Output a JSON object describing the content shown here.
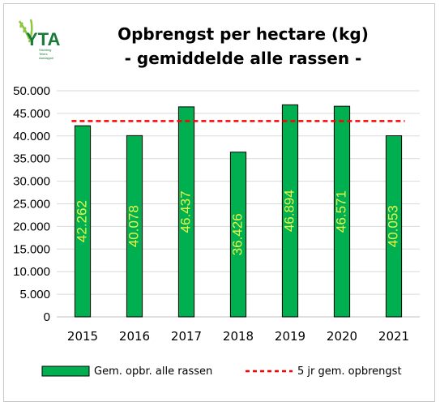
{
  "header": {
    "logo_letters": "YTA",
    "logo_subtext": [
      "Stichting",
      "Telers",
      "Aardappel"
    ],
    "title_line1": "Opbrengst per hectare (kg)",
    "title_line2": "- gemiddelde alle rassen -"
  },
  "colors": {
    "bar_fill": "#00b050",
    "bar_stroke": "#000000",
    "data_label": "#e8f548",
    "avg_line": "#ff0000",
    "logo_green": "#8dc63f",
    "logo_dark": "#1a7a3a",
    "grid": "#d9d9d9"
  },
  "chart_data": {
    "type": "bar",
    "categories": [
      "2015",
      "2016",
      "2017",
      "2018",
      "2019",
      "2020",
      "2021"
    ],
    "series": [
      {
        "name": "Gem. opbr. alle rassen",
        "values": [
          42262,
          40078,
          46437,
          36426,
          46894,
          46571,
          40053
        ],
        "data_labels": [
          "42.262",
          "40.078",
          "46.437",
          "36.426",
          "46.894",
          "46.571",
          "40.053"
        ]
      },
      {
        "name": "5 jr gem. opbrengst",
        "type": "line",
        "style": "dashed",
        "values": [
          43300,
          43300,
          43300,
          43300,
          43300,
          43300,
          43300
        ]
      }
    ],
    "title": "Opbrengst per hectare (kg) - gemiddelde alle rassen -",
    "xlabel": "",
    "ylabel": "",
    "ylim": [
      0,
      50000
    ],
    "yticks": [
      0,
      5000,
      10000,
      15000,
      20000,
      25000,
      30000,
      35000,
      40000,
      45000,
      50000
    ],
    "ytick_labels": [
      "0",
      "5.000",
      "10.000",
      "15.000",
      "20.000",
      "25.000",
      "30.000",
      "35.000",
      "40.000",
      "45.000",
      "50.000"
    ],
    "grid": true,
    "legend_position": "bottom"
  }
}
